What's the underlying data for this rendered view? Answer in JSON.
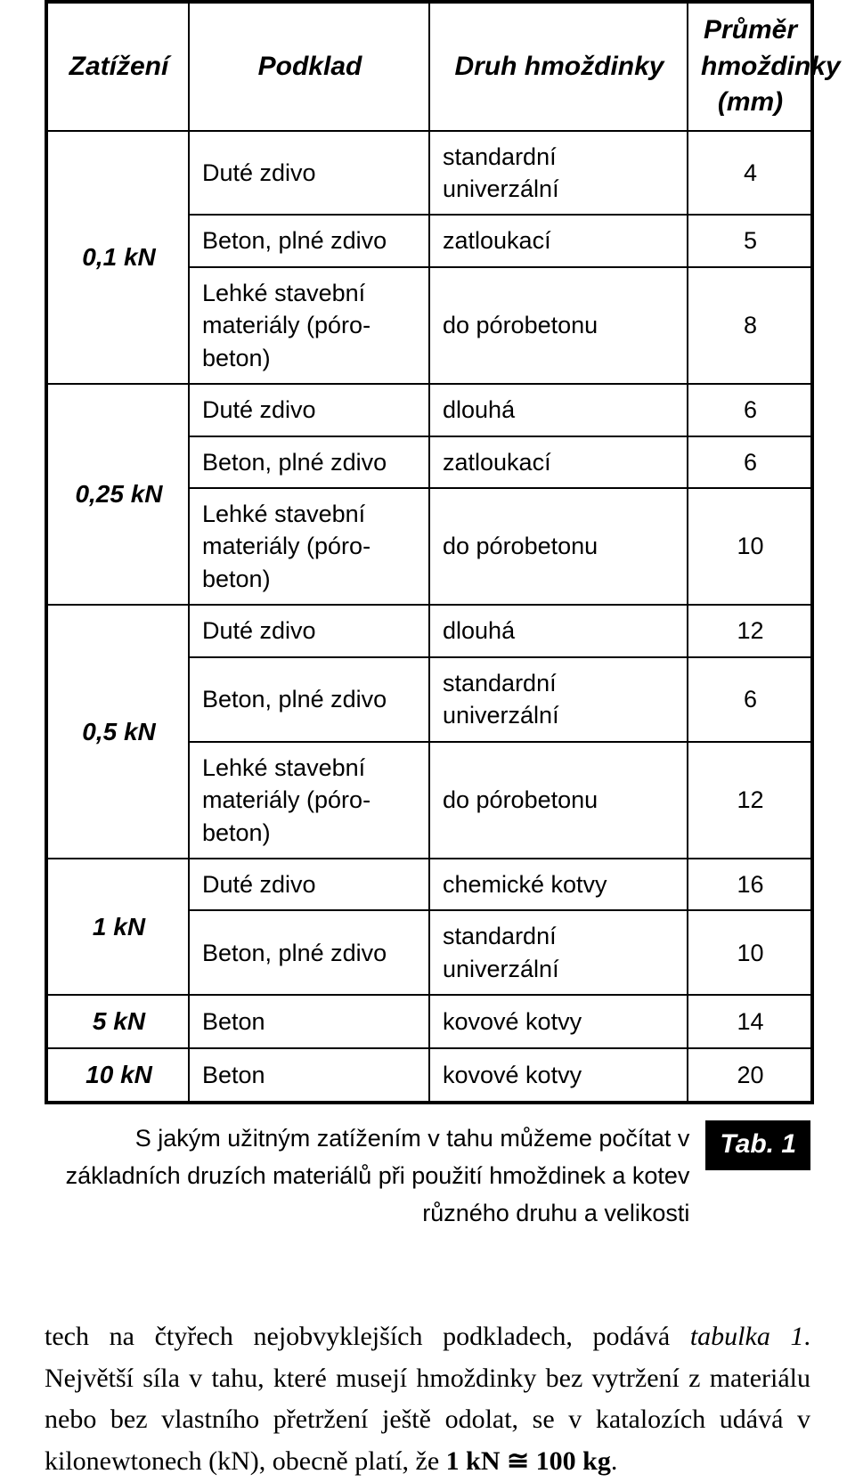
{
  "table": {
    "headers": {
      "load": "Zatížení",
      "substrate": "Podklad",
      "type": "Druh hmoždinky",
      "diameter": "Průměr hmoždinky (mm)"
    },
    "groups": [
      {
        "load": "0,1 kN",
        "rows": [
          {
            "substrate": "Duté zdivo",
            "type": "standardní univerzální",
            "dia": "4"
          },
          {
            "substrate": "Beton, plné zdivo",
            "type": "zatloukací",
            "dia": "5"
          },
          {
            "substrate": "Lehké stavební materiály (póro­beton)",
            "type": "do pórobetonu",
            "dia": "8"
          }
        ]
      },
      {
        "load": "0,25 kN",
        "rows": [
          {
            "substrate": "Duté zdivo",
            "type": "dlouhá",
            "dia": "6"
          },
          {
            "substrate": "Beton, plné zdivo",
            "type": "zatloukací",
            "dia": "6"
          },
          {
            "substrate": "Lehké stavební materiály (póro­beton)",
            "type": "do pórobetonu",
            "dia": "10"
          }
        ]
      },
      {
        "load": "0,5 kN",
        "rows": [
          {
            "substrate": "Duté zdivo",
            "type": "dlouhá",
            "dia": "12"
          },
          {
            "substrate": "Beton, plné zdivo",
            "type": "standardní univerzální",
            "dia": "6"
          },
          {
            "substrate": "Lehké stavební materiály (póro­beton)",
            "type": "do pórobetonu",
            "dia": "12"
          }
        ]
      },
      {
        "load": "1 kN",
        "rows": [
          {
            "substrate": "Duté zdivo",
            "type": "chemické kotvy",
            "dia": "16"
          },
          {
            "substrate": "Beton, plné zdivo",
            "type": "standardní univerzální",
            "dia": "10"
          }
        ]
      },
      {
        "load": "5 kN",
        "rows": [
          {
            "substrate": "Beton",
            "type": "kovové kotvy",
            "dia": "14"
          }
        ]
      },
      {
        "load": "10 kN",
        "rows": [
          {
            "substrate": "Beton",
            "type": "kovové kotvy",
            "dia": "20"
          }
        ]
      }
    ]
  },
  "caption": {
    "text": "S jakým užitným zatížením v tahu můžeme počítat v základních druzích materiálů při použití hmoždinek a kotev různého druhu a velikosti",
    "badge": "Tab. 1"
  },
  "paragraph": {
    "pre": "tech na čtyřech nejobvyklejších podkladech, podává ",
    "ital": "tabulka 1",
    "post1": ". Největší síla v tahu, které musejí hmoždinky bez vytržení z materiálu nebo bez vlastního přetržení ještě odolat, se v katalozích udává v kilonewtonech (kN), obecně platí, že ",
    "bold": "1 kN ≅ 100 kg",
    "post2": "."
  }
}
